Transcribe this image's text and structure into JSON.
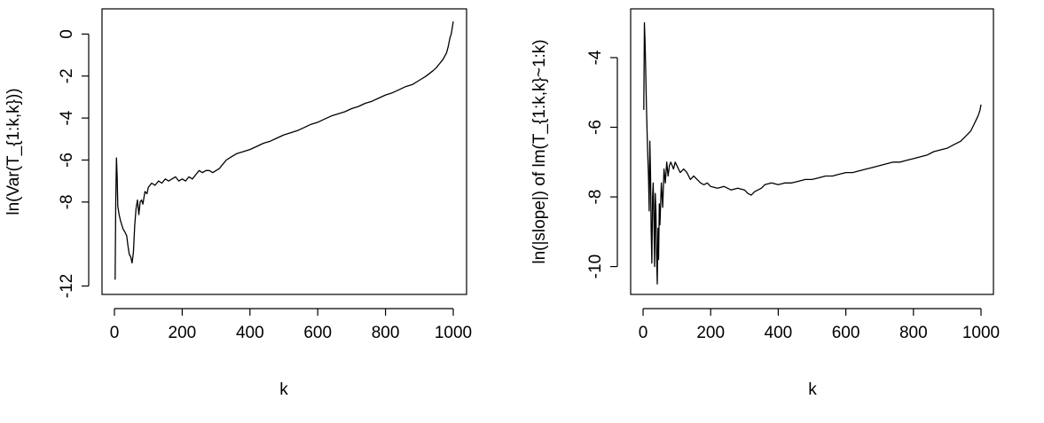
{
  "chart_data": [
    {
      "type": "line",
      "title": "",
      "xlabel": "k",
      "ylabel": "ln(Var(T_{1:k,k}))",
      "xlim": [
        0,
        1000
      ],
      "ylim": [
        -12.4,
        1.2
      ],
      "xticks": [
        0,
        200,
        400,
        600,
        800,
        1000
      ],
      "yticks": [
        0,
        -2,
        -4,
        -6,
        -8,
        -12
      ],
      "grid": false,
      "series": [
        {
          "x": [
            2,
            4,
            6,
            8,
            10,
            14,
            18,
            22,
            26,
            30,
            36,
            40,
            44,
            48,
            52,
            56,
            60,
            64,
            68,
            72,
            76,
            80,
            84,
            90,
            96,
            100,
            110,
            120,
            130,
            140,
            150,
            160,
            170,
            180,
            190,
            200,
            210,
            220,
            230,
            240,
            250,
            260,
            270,
            280,
            290,
            300,
            310,
            320,
            330,
            340,
            350,
            360,
            380,
            400,
            420,
            440,
            460,
            480,
            500,
            520,
            540,
            560,
            580,
            600,
            620,
            640,
            660,
            680,
            700,
            720,
            740,
            760,
            780,
            800,
            820,
            840,
            860,
            880,
            900,
            920,
            940,
            950,
            960,
            970,
            980,
            985,
            990,
            994,
            997,
            1000
          ],
          "y": [
            -11.7,
            -8.0,
            -5.9,
            -6.8,
            -8.2,
            -8.6,
            -8.9,
            -9.1,
            -9.3,
            -9.4,
            -9.6,
            -10.1,
            -10.5,
            -10.6,
            -10.9,
            -10.4,
            -9.1,
            -8.3,
            -7.9,
            -8.6,
            -8.0,
            -7.9,
            -8.1,
            -7.5,
            -7.6,
            -7.3,
            -7.1,
            -7.2,
            -7.0,
            -7.1,
            -6.9,
            -7.0,
            -6.9,
            -6.8,
            -7.0,
            -6.9,
            -7.0,
            -6.8,
            -6.9,
            -6.7,
            -6.5,
            -6.6,
            -6.5,
            -6.5,
            -6.6,
            -6.5,
            -6.4,
            -6.2,
            -6.0,
            -5.9,
            -5.8,
            -5.7,
            -5.6,
            -5.5,
            -5.35,
            -5.2,
            -5.1,
            -4.95,
            -4.8,
            -4.7,
            -4.6,
            -4.45,
            -4.3,
            -4.2,
            -4.05,
            -3.9,
            -3.8,
            -3.7,
            -3.55,
            -3.45,
            -3.3,
            -3.2,
            -3.05,
            -2.9,
            -2.8,
            -2.65,
            -2.5,
            -2.4,
            -2.2,
            -2.0,
            -1.75,
            -1.6,
            -1.4,
            -1.2,
            -0.9,
            -0.6,
            -0.2,
            0.0,
            0.3,
            0.6
          ]
        }
      ]
    },
    {
      "type": "line",
      "title": "",
      "xlabel": "k",
      "ylabel": "ln(|slope|) of lm(T_{1:k,k}~1:k)",
      "xlim": [
        0,
        1000
      ],
      "ylim": [
        -10.8,
        -2.6
      ],
      "xticks": [
        0,
        200,
        400,
        600,
        800,
        1000
      ],
      "yticks": [
        -4,
        -6,
        -8,
        -10
      ],
      "grid": false,
      "series": [
        {
          "x": [
            2,
            4,
            6,
            8,
            10,
            12,
            14,
            16,
            18,
            20,
            22,
            24,
            26,
            28,
            30,
            32,
            34,
            36,
            38,
            40,
            42,
            44,
            46,
            48,
            50,
            54,
            58,
            62,
            66,
            70,
            74,
            78,
            82,
            86,
            90,
            95,
            100,
            110,
            120,
            130,
            140,
            150,
            160,
            170,
            180,
            190,
            200,
            220,
            240,
            260,
            280,
            300,
            310,
            320,
            330,
            340,
            350,
            360,
            380,
            400,
            420,
            440,
            460,
            480,
            500,
            520,
            540,
            560,
            580,
            600,
            620,
            640,
            660,
            680,
            700,
            720,
            740,
            760,
            780,
            800,
            820,
            840,
            860,
            880,
            900,
            920,
            940,
            950,
            960,
            970,
            980,
            985,
            990,
            994,
            997,
            1000
          ],
          "y": [
            -5.5,
            -3.0,
            -3.6,
            -4.4,
            -5.4,
            -6.2,
            -6.8,
            -7.4,
            -8.4,
            -6.4,
            -7.3,
            -8.9,
            -9.9,
            -8.0,
            -7.6,
            -8.6,
            -10.0,
            -7.9,
            -8.4,
            -9.6,
            -10.5,
            -8.9,
            -9.8,
            -8.2,
            -8.8,
            -7.6,
            -8.3,
            -7.2,
            -7.6,
            -7.0,
            -7.4,
            -7.1,
            -7.0,
            -7.1,
            -7.2,
            -7.0,
            -7.1,
            -7.3,
            -7.2,
            -7.3,
            -7.5,
            -7.4,
            -7.5,
            -7.6,
            -7.65,
            -7.6,
            -7.7,
            -7.75,
            -7.7,
            -7.8,
            -7.75,
            -7.8,
            -7.9,
            -7.95,
            -7.85,
            -7.8,
            -7.75,
            -7.65,
            -7.6,
            -7.65,
            -7.6,
            -7.6,
            -7.55,
            -7.5,
            -7.5,
            -7.45,
            -7.4,
            -7.4,
            -7.35,
            -7.3,
            -7.3,
            -7.25,
            -7.2,
            -7.15,
            -7.1,
            -7.05,
            -7.0,
            -7.0,
            -6.95,
            -6.9,
            -6.85,
            -6.8,
            -6.7,
            -6.65,
            -6.6,
            -6.5,
            -6.4,
            -6.3,
            -6.2,
            -6.1,
            -5.9,
            -5.8,
            -5.7,
            -5.6,
            -5.5,
            -5.35
          ]
        }
      ]
    }
  ]
}
